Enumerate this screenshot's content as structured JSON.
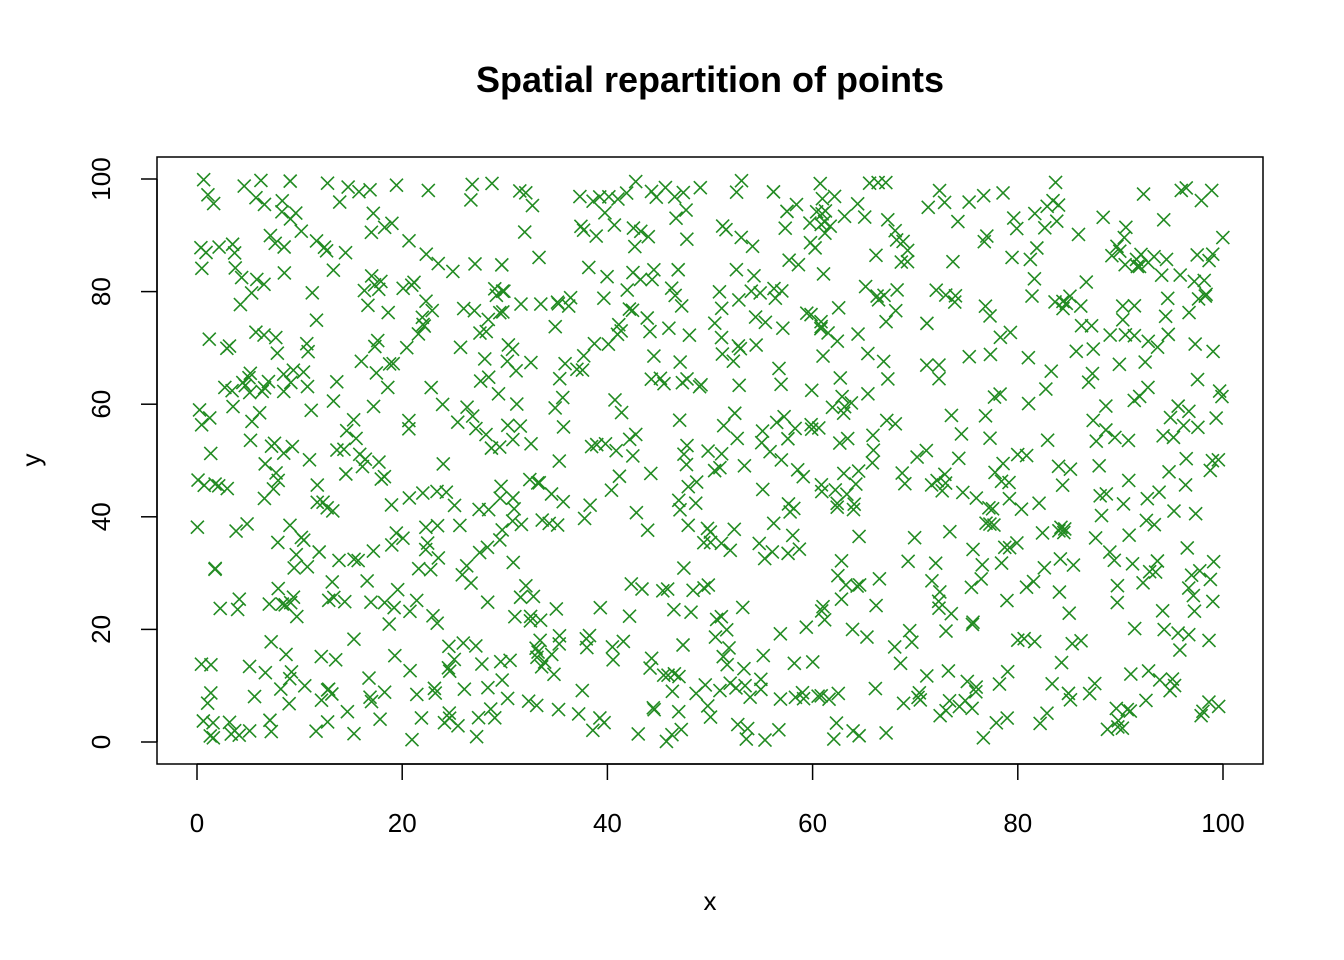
{
  "chart_data": {
    "type": "scatter",
    "title": "Spatial repartition of points",
    "xlabel": "x",
    "ylabel": "y",
    "xlim": [
      0,
      100
    ],
    "ylim": [
      0,
      100
    ],
    "xticks": [
      0,
      20,
      40,
      60,
      80,
      100
    ],
    "yticks": [
      0,
      20,
      40,
      60,
      80,
      100
    ],
    "grid": false,
    "legend": "none",
    "marker": "x",
    "color": "#228B22",
    "point_count": 1000
  }
}
